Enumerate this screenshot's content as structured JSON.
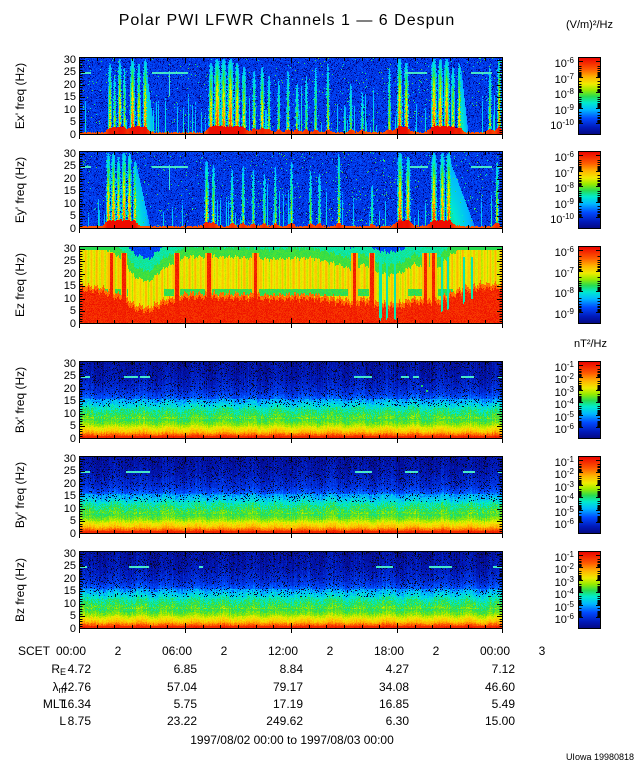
{
  "title": "Polar PWI LFWR Channels 1 — 6 Despun",
  "credit": "UIowa 19980818",
  "units": {
    "electric": "(V/m)²/Hz",
    "magnetic": "nT²/Hz"
  },
  "chart_data": {
    "type": "heatmap",
    "title": "Polar PWI LFWR Channels 1 — 6 Despun",
    "time_range": "1997/08/02 00:00 to 1997/08/03 00:00",
    "x_axis": {
      "label": "SCET",
      "ticks": [
        {
          "time": "00:00",
          "day": "2"
        },
        {
          "time": "06:00",
          "day": "2"
        },
        {
          "time": "12:00",
          "day": "2"
        },
        {
          "time": "18:00",
          "day": "2"
        },
        {
          "time": "00:00",
          "day": "3"
        }
      ]
    },
    "y_axis": {
      "ticks": [
        30,
        25,
        20,
        15,
        10,
        5,
        0
      ],
      "range": [
        0,
        31
      ]
    },
    "ephemeris": {
      "rows": [
        {
          "label": "R",
          "sub": "E",
          "values": [
            "4.72",
            "6.85",
            "8.84",
            "4.27",
            "7.12"
          ]
        },
        {
          "label": "λ",
          "sub": "m",
          "values": [
            "42.76",
            "57.04",
            "79.17",
            "34.08",
            "46.60"
          ]
        },
        {
          "label": "MLT",
          "sub": "",
          "values": [
            "16.34",
            "5.75",
            "17.19",
            "16.85",
            "5.49"
          ]
        },
        {
          "label": "L",
          "sub": "",
          "values": [
            "8.75",
            "23.22",
            "249.62",
            "6.30",
            "15.00"
          ]
        }
      ]
    },
    "panels": [
      {
        "name": "Ex",
        "ylabel": "Ex' freq (Hz)",
        "group": "electric",
        "kind": "E",
        "seed": 11,
        "colorbar_exponents": [
          "-6",
          "-7",
          "-8",
          "-9",
          "-10"
        ],
        "dashes": [
          [
            0.004,
            0.028
          ],
          [
            0.172,
            0.258
          ],
          [
            0.77,
            0.82
          ],
          [
            0.925,
            0.975
          ],
          [
            0.988,
            1.0
          ]
        ],
        "dash_vlines": [
          0.212
        ],
        "washes": [
          [
            0.158,
            0.178
          ],
          [
            0.9,
            0.918
          ]
        ],
        "streaks": [
          [
            0.072,
            0.75,
            0.95,
            1.2
          ],
          [
            0.083,
            0.55,
            0.8,
            1.0
          ],
          [
            0.095,
            0.85,
            1.0,
            1.2
          ],
          [
            0.106,
            0.6,
            0.9,
            1.0
          ],
          [
            0.125,
            0.95,
            1.0,
            1.6
          ],
          [
            0.14,
            0.7,
            0.95,
            1.2
          ],
          [
            0.155,
            0.9,
            1.0,
            1.4
          ],
          [
            0.31,
            0.8,
            0.95,
            1.5
          ],
          [
            0.325,
            1.0,
            1.0,
            2.0
          ],
          [
            0.34,
            0.9,
            1.0,
            1.8
          ],
          [
            0.356,
            1.0,
            1.0,
            2.0
          ],
          [
            0.372,
            0.85,
            0.95,
            1.6
          ],
          [
            0.388,
            0.7,
            0.9,
            1.4
          ],
          [
            0.412,
            0.6,
            0.85,
            1.2
          ],
          [
            0.431,
            0.75,
            0.9,
            1.4
          ],
          [
            0.447,
            0.55,
            0.8,
            1.0
          ],
          [
            0.47,
            0.5,
            0.75,
            1.0
          ],
          [
            0.492,
            0.55,
            0.85,
            1.0
          ],
          [
            0.513,
            0.5,
            0.7,
            1.0
          ],
          [
            0.535,
            0.45,
            0.8,
            1.0
          ],
          [
            0.557,
            0.5,
            0.9,
            1.0
          ],
          [
            0.586,
            0.55,
            0.95,
            1.0
          ],
          [
            0.64,
            0.45,
            0.7,
            1.0
          ],
          [
            0.667,
            0.4,
            0.6,
            1.0
          ],
          [
            0.731,
            0.55,
            0.9,
            1.0
          ],
          [
            0.755,
            0.95,
            1.0,
            1.6
          ],
          [
            0.771,
            0.85,
            0.95,
            1.4
          ],
          [
            0.836,
            1.0,
            1.0,
            1.8
          ],
          [
            0.851,
            0.9,
            1.0,
            1.6
          ],
          [
            0.866,
            0.95,
            1.0,
            1.8
          ],
          [
            0.881,
            0.7,
            0.9,
            1.2
          ],
          [
            0.896,
            0.8,
            0.95,
            1.2
          ],
          [
            0.968,
            0.55,
            0.9,
            1.0
          ],
          [
            0.99,
            0.85,
            1.0,
            1.2
          ]
        ]
      },
      {
        "name": "Ey",
        "ylabel": "Ey' freq (Hz)",
        "group": "electric",
        "kind": "E",
        "seed": 22,
        "colorbar_exponents": [
          "-6",
          "-7",
          "-8",
          "-9",
          "-10"
        ],
        "dashes": [
          [
            0.004,
            0.028
          ],
          [
            0.172,
            0.258
          ],
          [
            0.78,
            0.822
          ],
          [
            0.925,
            0.975
          ],
          [
            0.988,
            1.0
          ]
        ],
        "dash_vlines": [
          0.212
        ],
        "washes": [
          [
            0.133,
            0.168
          ],
          [
            0.875,
            0.935
          ]
        ],
        "streaks": [
          [
            0.068,
            0.85,
            1.0,
            1.4
          ],
          [
            0.08,
            0.9,
            1.0,
            1.5
          ],
          [
            0.092,
            0.8,
            0.95,
            1.3
          ],
          [
            0.105,
            0.95,
            1.0,
            1.6
          ],
          [
            0.118,
            0.9,
            1.0,
            1.4
          ],
          [
            0.131,
            0.75,
            0.9,
            1.2
          ],
          [
            0.3,
            0.7,
            0.9,
            1.3
          ],
          [
            0.316,
            0.6,
            0.85,
            1.1
          ],
          [
            0.36,
            0.5,
            0.8,
            1.0
          ],
          [
            0.386,
            0.55,
            0.85,
            1.0
          ],
          [
            0.41,
            0.5,
            0.8,
            1.0
          ],
          [
            0.436,
            0.45,
            0.75,
            1.0
          ],
          [
            0.462,
            0.5,
            0.85,
            1.0
          ],
          [
            0.5,
            0.55,
            0.9,
            1.0
          ],
          [
            0.545,
            0.5,
            0.8,
            1.0
          ],
          [
            0.566,
            0.45,
            0.75,
            1.0
          ],
          [
            0.612,
            0.6,
            1.0,
            1.0
          ],
          [
            0.69,
            0.4,
            0.6,
            1.0
          ],
          [
            0.756,
            1.0,
            1.0,
            1.7
          ],
          [
            0.775,
            0.9,
            0.95,
            1.5
          ],
          [
            0.836,
            1.0,
            1.0,
            1.8
          ],
          [
            0.856,
            0.9,
            1.0,
            1.6
          ],
          [
            0.871,
            0.95,
            1.0,
            1.7
          ],
          [
            0.985,
            0.6,
            0.9,
            1.0
          ]
        ]
      },
      {
        "name": "Ez",
        "ylabel": "Ez freq (Hz)",
        "group": "electric",
        "kind": "Ez",
        "seed": 33,
        "colorbar_exponents": [
          "-6",
          "-7",
          "-8",
          "-9"
        ],
        "warm_points": [
          [
            0,
            4
          ],
          [
            0.05,
            3
          ],
          [
            0.1,
            0
          ],
          [
            0.13,
            -4
          ],
          [
            0.165,
            -5
          ],
          [
            0.2,
            -2
          ],
          [
            0.25,
            0.5
          ],
          [
            0.35,
            0.5
          ],
          [
            0.45,
            0
          ],
          [
            0.55,
            0.3
          ],
          [
            0.62,
            -1.5
          ],
          [
            0.645,
            -2.5
          ],
          [
            0.67,
            -1
          ],
          [
            0.7,
            -3
          ],
          [
            0.73,
            -3.5
          ],
          [
            0.76,
            -3
          ],
          [
            0.79,
            -1
          ],
          [
            0.81,
            -2
          ],
          [
            0.845,
            -2
          ],
          [
            0.87,
            0.5
          ],
          [
            0.91,
            3
          ],
          [
            0.95,
            4.5
          ],
          [
            1,
            4
          ]
        ],
        "red_streaks": [
          0.075,
          0.105,
          0.23,
          0.305,
          0.415,
          0.648,
          0.69,
          0.816,
          0.835
        ],
        "cool_streaks": [
          0.71,
          0.725,
          0.745,
          0.855,
          0.87,
          0.907,
          0.925
        ],
        "green_band": {
          "center": 12.6,
          "halfwidth": 1.4,
          "x0": 0.045,
          "x1": 0.88
        }
      },
      {
        "name": "Bx",
        "ylabel": "Bx' freq (Hz)",
        "group": "magnetic",
        "kind": "B",
        "seed": 44,
        "colorbar_exponents": [
          "-1",
          "-2",
          "-3",
          "-4",
          "-5",
          "-6"
        ],
        "dashes": [
          [
            0.004,
            0.026
          ],
          [
            0.105,
            0.138
          ],
          [
            0.143,
            0.168
          ],
          [
            0.648,
            0.69
          ],
          [
            0.76,
            0.778
          ],
          [
            0.787,
            0.802
          ],
          [
            0.902,
            0.932
          ],
          [
            0.988,
            1.0
          ]
        ],
        "dots": [
          [
            0.806,
            21.5
          ],
          [
            0.818,
            19.5
          ]
        ]
      },
      {
        "name": "By",
        "ylabel": "By' freq (Hz)",
        "group": "magnetic",
        "kind": "B",
        "seed": 55,
        "colorbar_exponents": [
          "-1",
          "-2",
          "-3",
          "-4",
          "-5",
          "-6"
        ],
        "dashes": [
          [
            0.004,
            0.026
          ],
          [
            0.11,
            0.168
          ],
          [
            0.652,
            0.69
          ],
          [
            0.77,
            0.8
          ],
          [
            0.905,
            0.935
          ],
          [
            0.988,
            1.0
          ]
        ],
        "dots": []
      },
      {
        "name": "Bz",
        "ylabel": "Bz freq (Hz)",
        "group": "magnetic",
        "kind": "B",
        "seed": 66,
        "colorbar_exponents": [
          "-1",
          "-2",
          "-3",
          "-4",
          "-5",
          "-6"
        ],
        "dashes": [
          [
            0.0,
            0.018
          ],
          [
            0.118,
            0.166
          ],
          [
            0.282,
            0.292
          ],
          [
            0.7,
            0.74
          ],
          [
            0.826,
            0.88
          ],
          [
            0.976,
            1.0
          ]
        ],
        "dots": []
      }
    ],
    "colorbar_units": {
      "electric": "(V/m)²/Hz",
      "magnetic": "nT²/Hz"
    },
    "legend_position": "right",
    "grid": false
  },
  "colors": {
    "background": "#ffffff",
    "frame": "#000000",
    "dash_cyan": "#46e6c8",
    "hot_red": "#eb0000",
    "cold_blue": "#050578"
  }
}
